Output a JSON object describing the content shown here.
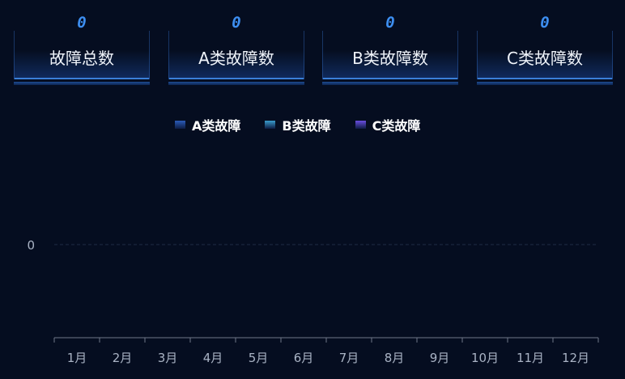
{
  "cards": [
    {
      "value": "0",
      "label": "故障总数"
    },
    {
      "value": "0",
      "label": "A类故障数"
    },
    {
      "value": "0",
      "label": "B类故障数"
    },
    {
      "value": "0",
      "label": "C类故障数"
    }
  ],
  "colors": {
    "accent": "#3d8ef0",
    "background": "#050d20"
  },
  "chart_data": {
    "type": "bar",
    "categories": [
      "1月",
      "2月",
      "3月",
      "4月",
      "5月",
      "6月",
      "7月",
      "8月",
      "9月",
      "10月",
      "11月",
      "12月"
    ],
    "series": [
      {
        "name": "A类故障",
        "color": "#2a5bb8",
        "values": [
          0,
          0,
          0,
          0,
          0,
          0,
          0,
          0,
          0,
          0,
          0,
          0
        ]
      },
      {
        "name": "B类故障",
        "color": "#3a9ccc",
        "values": [
          0,
          0,
          0,
          0,
          0,
          0,
          0,
          0,
          0,
          0,
          0,
          0
        ]
      },
      {
        "name": "C类故障",
        "color": "#6a4ee0",
        "values": [
          0,
          0,
          0,
          0,
          0,
          0,
          0,
          0,
          0,
          0,
          0,
          0
        ]
      }
    ],
    "yticks": [
      "0"
    ],
    "legend": "top-center",
    "grid": true
  }
}
